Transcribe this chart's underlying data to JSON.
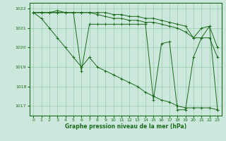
{
  "title": "Graphe pression niveau de la mer (hPa)",
  "bg_color": "#cce8dc",
  "grid_color": "#99ccaa",
  "line_color": "#1a6b1a",
  "ylim": [
    1016.5,
    1022.3
  ],
  "xlim": [
    -0.5,
    23.5
  ],
  "yticks": [
    1017,
    1018,
    1019,
    1020,
    1021,
    1022
  ],
  "xticks": [
    0,
    1,
    2,
    3,
    4,
    5,
    6,
    7,
    8,
    9,
    10,
    11,
    12,
    13,
    14,
    15,
    16,
    17,
    18,
    19,
    20,
    21,
    22,
    23
  ],
  "series": [
    [
      1021.8,
      1021.8,
      1021.8,
      1021.8,
      1021.8,
      1021.8,
      1021.8,
      1021.8,
      1021.8,
      1021.8,
      1021.7,
      1021.7,
      1021.6,
      1021.6,
      1021.5,
      1021.5,
      1021.4,
      1021.3,
      1021.2,
      1021.1,
      1020.5,
      1020.5,
      1020.5,
      1019.5
    ],
    [
      1021.8,
      1021.8,
      1021.8,
      1021.9,
      1021.8,
      1021.8,
      1018.8,
      1021.2,
      1021.2,
      1021.2,
      1021.2,
      1021.2,
      1021.2,
      1021.2,
      1021.2,
      1017.3,
      1020.2,
      1020.3,
      1016.8,
      1016.8,
      1019.5,
      1020.5,
      1021.1,
      1016.8
    ],
    [
      1021.8,
      1021.8,
      1021.8,
      1021.8,
      1021.8,
      1021.8,
      1021.8,
      1021.8,
      1021.7,
      1021.6,
      1021.5,
      1021.5,
      1021.4,
      1021.4,
      1021.3,
      1021.3,
      1021.2,
      1021.1,
      1021.0,
      1020.8,
      1020.5,
      1021.0,
      1021.1,
      1020.0
    ],
    [
      1021.8,
      1021.5,
      1021.0,
      1020.5,
      1020.0,
      1019.5,
      1019.0,
      1019.5,
      1019.0,
      1018.8,
      1018.6,
      1018.4,
      1018.2,
      1018.0,
      1017.7,
      1017.5,
      1017.3,
      1017.2,
      1017.0,
      1016.9,
      1016.9,
      1016.9,
      1016.9,
      1016.8
    ]
  ]
}
